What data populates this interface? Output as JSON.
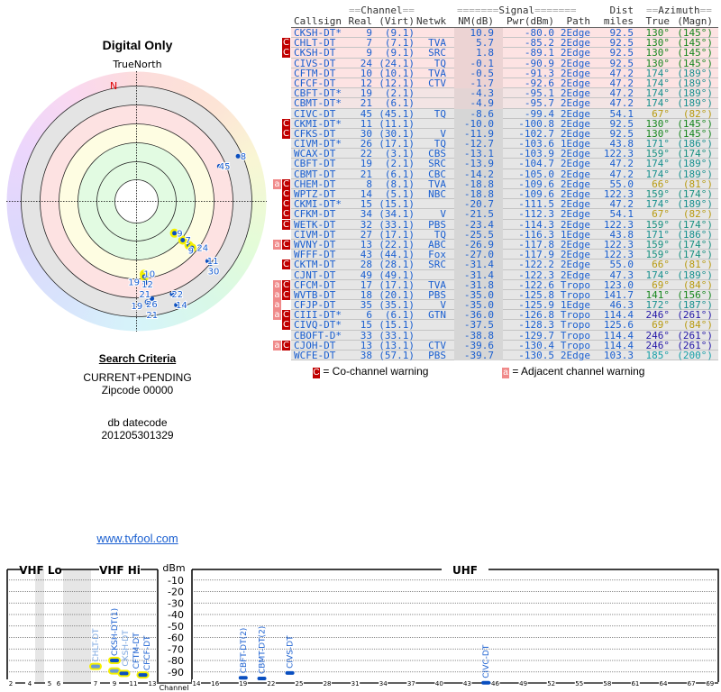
{
  "left": {
    "title": "Digital Only",
    "true_north": "TrueNorth",
    "north_label": "N",
    "search_criteria_heading": "Search Criteria",
    "criteria": "CURRENT+PENDING",
    "zipcode": "Zipcode 00000",
    "db_label": "db datecode",
    "db_value": "201205301329",
    "link": "www.tvfool.com"
  },
  "table": {
    "group_headers": {
      "channel": "Channel",
      "signal": "Signal",
      "dist": "Dist",
      "azimuth": "Azimuth"
    },
    "columns": [
      "Callsign",
      "Real",
      "(Virt)",
      "Netwk",
      "NM(dB)",
      "Pwr(dBm)",
      "Path",
      "miles",
      "True",
      "(Magn)"
    ],
    "rows": [
      [
        "",
        "CKSH-DT*",
        "9",
        "(9.1)",
        "",
        "10.9",
        "-80.0",
        "2Edge",
        "92.5",
        "130°",
        "(145°)"
      ],
      [
        "C",
        "CHLT-DT",
        "7",
        "(7.1)",
        "TVA",
        "5.7",
        "-85.2",
        "2Edge",
        "92.5",
        "130°",
        "(145°)"
      ],
      [
        "C",
        "CKSH-DT",
        "9",
        "(9.1)",
        "SRC",
        "1.8",
        "-89.1",
        "2Edge",
        "92.5",
        "130°",
        "(145°)"
      ],
      [
        "",
        "CIVS-DT",
        "24",
        "(24.1)",
        "TQ",
        "-0.1",
        "-90.9",
        "2Edge",
        "92.5",
        "130°",
        "(145°)"
      ],
      [
        "",
        "CFTM-DT",
        "10",
        "(10.1)",
        "TVA",
        "-0.5",
        "-91.3",
        "2Edge",
        "47.2",
        "174°",
        "(189°)"
      ],
      [
        "",
        "CFCF-DT",
        "12",
        "(12.1)",
        "CTV",
        "-1.7",
        "-92.6",
        "2Edge",
        "47.2",
        "174°",
        "(189°)"
      ],
      [
        "",
        "CBFT-DT*",
        "19",
        "(2.1)",
        "",
        "-4.3",
        "-95.1",
        "2Edge",
        "47.2",
        "174°",
        "(189°)"
      ],
      [
        "",
        "CBMT-DT*",
        "21",
        "(6.1)",
        "",
        "-4.9",
        "-95.7",
        "2Edge",
        "47.2",
        "174°",
        "(189°)"
      ],
      [
        "",
        "CIVC-DT",
        "45",
        "(45.1)",
        "TQ",
        "-8.6",
        "-99.4",
        "2Edge",
        "54.1",
        "67°",
        "(82°)"
      ],
      [
        "C",
        "CKMI-DT*",
        "11",
        "(11.1)",
        "",
        "-10.0",
        "-100.8",
        "2Edge",
        "92.5",
        "130°",
        "(145°)"
      ],
      [
        "C",
        "CFKS-DT",
        "30",
        "(30.1)",
        "V",
        "-11.9",
        "-102.7",
        "2Edge",
        "92.5",
        "130°",
        "(145°)"
      ],
      [
        "",
        "CIVM-DT*",
        "26",
        "(17.1)",
        "TQ",
        "-12.7",
        "-103.6",
        "1Edge",
        "43.8",
        "171°",
        "(186°)"
      ],
      [
        "",
        "WCAX-DT",
        "22",
        "(3.1)",
        "CBS",
        "-13.1",
        "-103.9",
        "2Edge",
        "122.3",
        "159°",
        "(174°)"
      ],
      [
        "",
        "CBFT-DT",
        "19",
        "(2.1)",
        "SRC",
        "-13.9",
        "-104.7",
        "2Edge",
        "47.2",
        "174°",
        "(189°)"
      ],
      [
        "",
        "CBMT-DT",
        "21",
        "(6.1)",
        "CBC",
        "-14.2",
        "-105.0",
        "2Edge",
        "47.2",
        "174°",
        "(189°)"
      ],
      [
        "aC",
        "CHEM-DT",
        "8",
        "(8.1)",
        "TVA",
        "-18.8",
        "-109.6",
        "2Edge",
        "55.0",
        "66°",
        "(81°)"
      ],
      [
        "C",
        "WPTZ-DT",
        "14",
        "(5.1)",
        "NBC",
        "-18.8",
        "-109.6",
        "2Edge",
        "122.3",
        "159°",
        "(174°)"
      ],
      [
        "C",
        "CKMI-DT*",
        "15",
        "(15.1)",
        "",
        "-20.7",
        "-111.5",
        "2Edge",
        "47.2",
        "174°",
        "(189°)"
      ],
      [
        "C",
        "CFKM-DT",
        "34",
        "(34.1)",
        "V",
        "-21.5",
        "-112.3",
        "2Edge",
        "54.1",
        "67°",
        "(82°)"
      ],
      [
        "C",
        "WETK-DT",
        "32",
        "(33.1)",
        "PBS",
        "-23.4",
        "-114.3",
        "2Edge",
        "122.3",
        "159°",
        "(174°)"
      ],
      [
        "",
        "CIVM-DT",
        "27",
        "(17.1)",
        "TQ",
        "-25.5",
        "-116.3",
        "1Edge",
        "43.8",
        "171°",
        "(186°)"
      ],
      [
        "aC",
        "WVNY-DT",
        "13",
        "(22.1)",
        "ABC",
        "-26.9",
        "-117.8",
        "2Edge",
        "122.3",
        "159°",
        "(174°)"
      ],
      [
        "",
        "WFFF-DT",
        "43",
        "(44.1)",
        "Fox",
        "-27.0",
        "-117.9",
        "2Edge",
        "122.3",
        "159°",
        "(174°)"
      ],
      [
        "C",
        "CKTM-DT",
        "28",
        "(28.1)",
        "SRC",
        "-31.4",
        "-122.2",
        "2Edge",
        "55.0",
        "66°",
        "(81°)"
      ],
      [
        "",
        "CJNT-DT",
        "49",
        "(49.1)",
        "",
        "-31.4",
        "-122.3",
        "2Edge",
        "47.3",
        "174°",
        "(189°)"
      ],
      [
        "aC",
        "CFCM-DT",
        "17",
        "(17.1)",
        "TVA",
        "-31.8",
        "-122.6",
        "Tropo",
        "123.0",
        "69°",
        "(84°)"
      ],
      [
        "aC",
        "WVTB-DT",
        "18",
        "(20.1)",
        "PBS",
        "-35.0",
        "-125.8",
        "Tropo",
        "141.7",
        "141°",
        "(156°)"
      ],
      [
        "a",
        "CFJP-DT",
        "35",
        "(35.1)",
        "V",
        "-35.0",
        "-125.9",
        "1Edge",
        "46.3",
        "172°",
        "(187°)"
      ],
      [
        "aC",
        "CIII-DT*",
        "6",
        "(6.1)",
        "GTN",
        "-36.0",
        "-126.8",
        "Tropo",
        "114.4",
        "246°",
        "(261°)"
      ],
      [
        "C",
        "CIVQ-DT*",
        "15",
        "(15.1)",
        "",
        "-37.5",
        "-128.3",
        "Tropo",
        "125.6",
        "69°",
        "(84°)"
      ],
      [
        "",
        "CBOFT-D*",
        "33",
        "(33.1)",
        "",
        "-38.8",
        "-129.7",
        "Tropo",
        "114.4",
        "246°",
        "(261°)"
      ],
      [
        "aC",
        "CJOH-DT",
        "13",
        "(13.1)",
        "CTV",
        "-39.6",
        "-130.4",
        "Tropo",
        "114.4",
        "246°",
        "(261°)"
      ],
      [
        "",
        "WCFE-DT",
        "38",
        "(57.1)",
        "PBS",
        "-39.7",
        "-130.5",
        "2Edge",
        "103.3",
        "185°",
        "(200°)"
      ]
    ],
    "azimuth_colors": {
      "130°": "#17871f",
      "174°": "#17908e",
      "67°": "#b89a10",
      "66°": "#b89a10",
      "69°": "#b89a10",
      "171°": "#17908e",
      "159°": "#179080",
      "141°": "#17871f",
      "172°": "#17908e",
      "246°": "#2418a8",
      "185°": "#18a0a8"
    },
    "legend": {
      "co_symbol": "C",
      "co_label": "= Co-channel warning",
      "adj_symbol": "a",
      "adj_label": "= Adjacent channel warning"
    }
  },
  "spectrum": {
    "vhf_lo_label": "VHF Lo",
    "vhf_hi_label": "VHF Hi",
    "uhf_label": "UHF",
    "unit_label": "dBm",
    "channel_label": "Channel",
    "db_ticks": [
      "-10",
      "-20",
      "-30",
      "-40",
      "-50",
      "-60",
      "-70",
      "-80",
      "-90"
    ],
    "vhf_ticks": [
      "2",
      "4",
      "5",
      "6",
      "7",
      "9",
      "11",
      "13"
    ],
    "uhf_ticks": [
      "14",
      "16",
      "19",
      "22",
      "25",
      "28",
      "31",
      "34",
      "37",
      "40",
      "43",
      "46",
      "49",
      "52",
      "55",
      "58",
      "61",
      "64",
      "67",
      "69"
    ],
    "stations": [
      {
        "label": "CHLT-DT",
        "channel": 7,
        "dbm": -85.2,
        "highlight": true,
        "faint": true
      },
      {
        "label": "CKSH-DT(1)",
        "channel": 9,
        "dbm": -80.0,
        "highlight": true,
        "faint": false
      },
      {
        "label": "CKSH-DT",
        "channel": 9,
        "dbm": -89.1,
        "highlight": true,
        "faint": true
      },
      {
        "label": "CFTM-DT",
        "channel": 10,
        "dbm": -91.3,
        "highlight": true,
        "faint": false
      },
      {
        "label": "CFCF-DT",
        "channel": 12,
        "dbm": -92.6,
        "highlight": true,
        "faint": false
      },
      {
        "label": "CBFT-DT(2)",
        "channel": 19,
        "dbm": -95.1,
        "highlight": false,
        "faint": false
      },
      {
        "label": "CBMT-DT(2)",
        "channel": 21,
        "dbm": -95.7,
        "highlight": false,
        "faint": false
      },
      {
        "label": "CIVS-DT",
        "channel": 24,
        "dbm": -90.9,
        "highlight": false,
        "faint": false
      },
      {
        "label": "CIVC-DT",
        "channel": 45,
        "dbm": -99.4,
        "highlight": false,
        "faint": false
      }
    ]
  },
  "polar_labels": [
    "9",
    "7",
    "9",
    "24",
    "11",
    "10",
    "12",
    "19",
    "21",
    "45",
    "8",
    "22",
    "14",
    "16"
  ],
  "colors": {
    "link": "#1a5fd0",
    "co_warning": "#c00000",
    "adj_warning": "#f08a8a",
    "mark": "#0a4fc0",
    "highlight": "#f5f000"
  }
}
